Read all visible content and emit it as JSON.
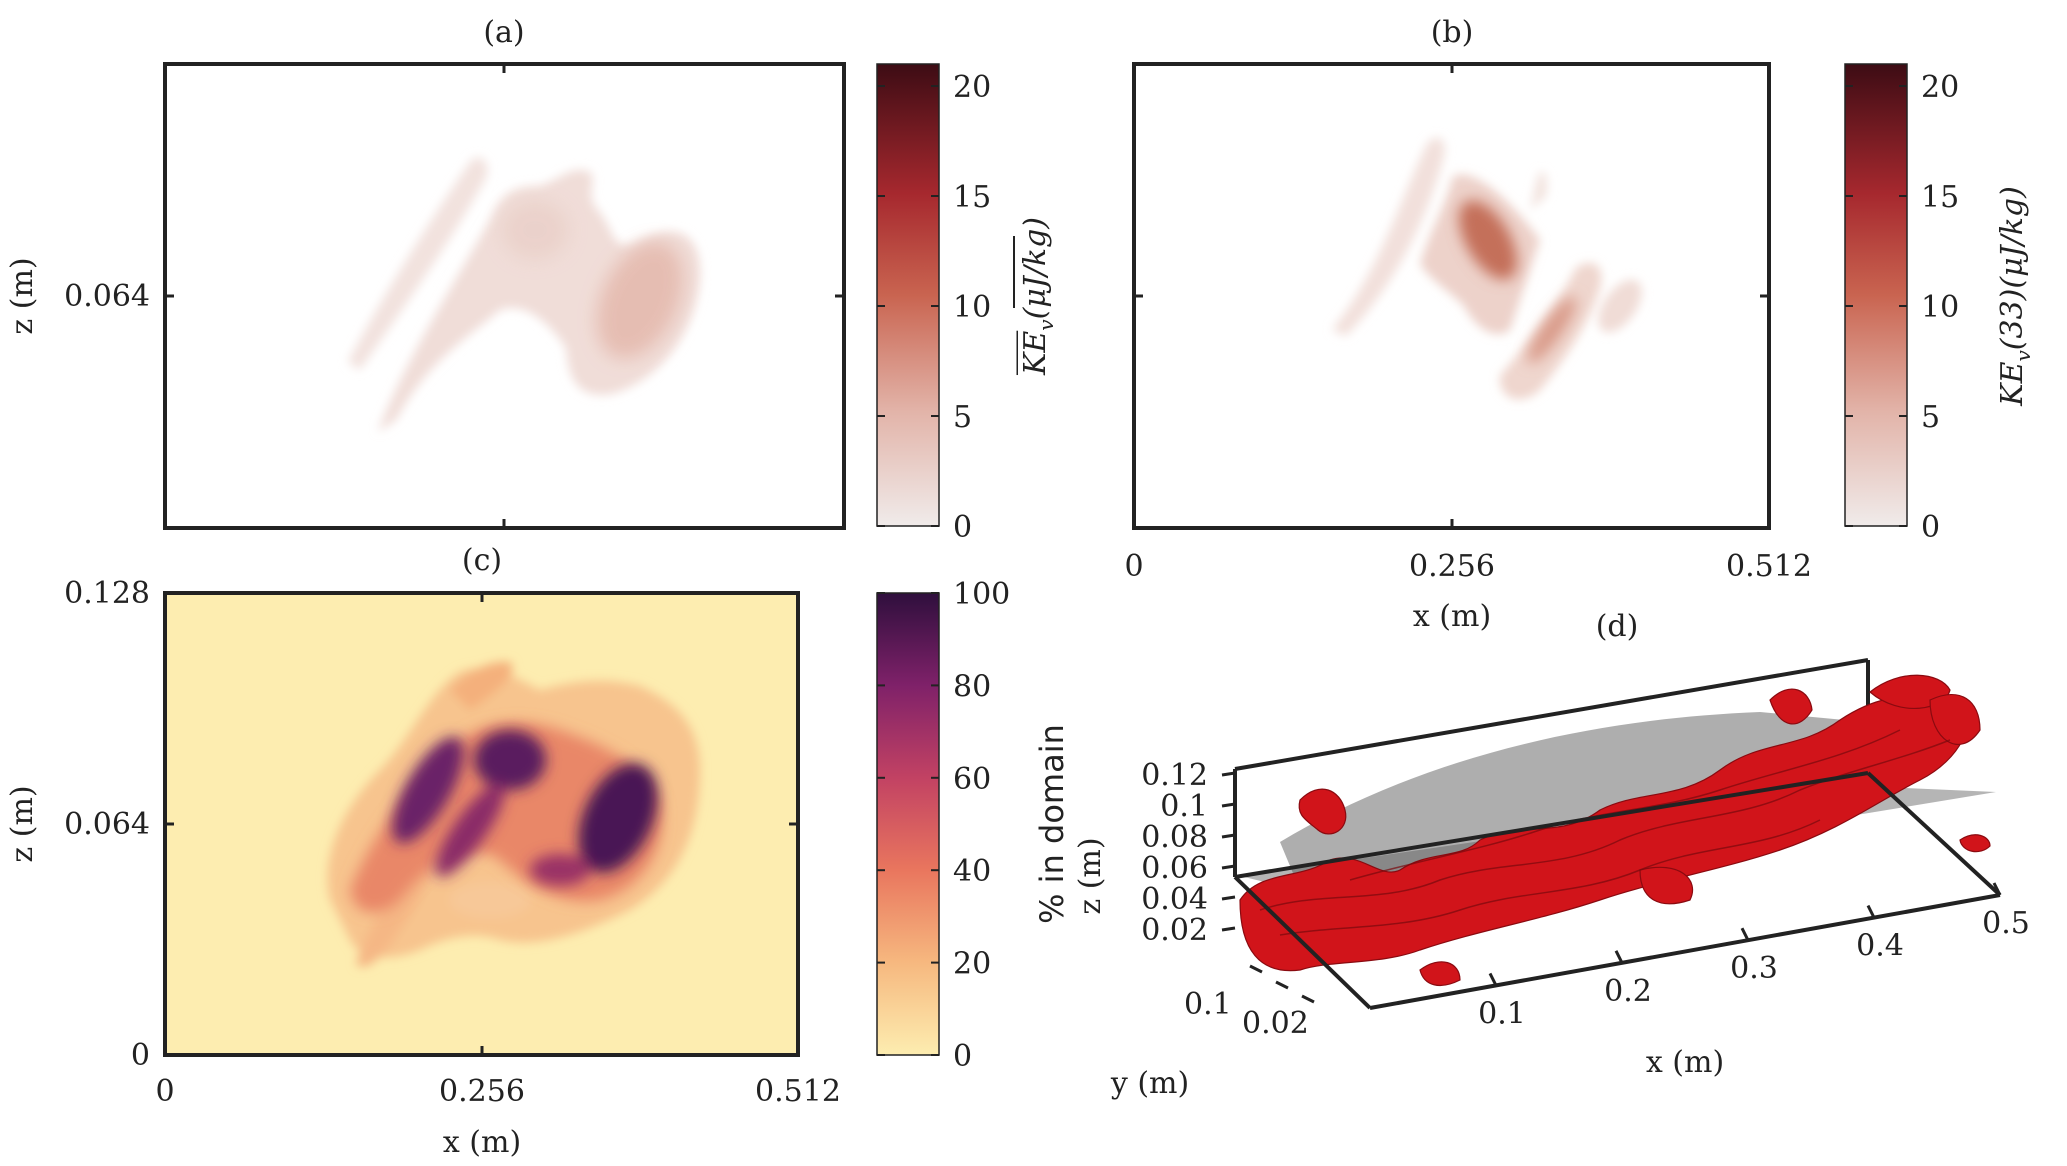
{
  "chart_data": [
    {
      "type": "heatmap",
      "panel": "(a)",
      "xlabel": "",
      "ylabel": "z (m)",
      "xlim": [
        0,
        0.512
      ],
      "ylim": [
        0,
        0.128
      ],
      "y_ticks": [
        "0.064"
      ],
      "colorbar": {
        "label_parts": [
          "KE",
          "v",
          "(μJ/kg)"
        ],
        "overline": true,
        "ticks": [
          "0",
          "5",
          "10",
          "15",
          "20"
        ],
        "range": [
          0,
          21
        ],
        "colormap": "amp"
      },
      "peak_value": 5
    },
    {
      "type": "heatmap",
      "panel": "(b)",
      "xlabel": "x (m)",
      "ylabel": "",
      "xlim": [
        0,
        0.512
      ],
      "ylim": [
        0,
        0.128
      ],
      "x_ticks": [
        "0",
        "0.256",
        "0.512"
      ],
      "colorbar": {
        "label_parts": [
          "KE",
          "v",
          "(33)(μJ/kg)"
        ],
        "overline": false,
        "ticks": [
          "0",
          "5",
          "10",
          "15",
          "20"
        ],
        "range": [
          0,
          21
        ],
        "colormap": "amp"
      },
      "peak_value": 9
    },
    {
      "type": "heatmap",
      "panel": "(c)",
      "xlabel": "x (m)",
      "ylabel": "z (m)",
      "xlim": [
        0,
        0.512
      ],
      "ylim": [
        0,
        0.128
      ],
      "x_ticks": [
        "0",
        "0.256",
        "0.512"
      ],
      "y_ticks": [
        "0",
        "0.064",
        "0.128"
      ],
      "colorbar": {
        "label": "% in domain",
        "ticks": [
          "0",
          "20",
          "40",
          "60",
          "80",
          "100"
        ],
        "range": [
          0,
          100
        ],
        "colormap": "matter"
      },
      "peak_value": 100
    },
    {
      "type": "isosurface-3d",
      "panel": "(d)",
      "xlabel": "x (m)",
      "ylabel": "y (m)",
      "zlabel": "z (m)",
      "x_ticks": [
        "0.1",
        "0.2",
        "0.3",
        "0.4",
        "0.5"
      ],
      "y_ticks": [
        "0.1",
        "0.02"
      ],
      "z_ticks": [
        "0.02",
        "0.04",
        "0.06",
        "0.08",
        "0.1",
        "0.12"
      ]
    }
  ],
  "colors": {
    "amp_low": "#f2ece9",
    "amp_high": "#3d0c14",
    "matter_low": "#fdedb0",
    "matter_high": "#2f0f3d",
    "isosurface": "#d1141a",
    "plane": "#6b6b6b",
    "axis": "#222222"
  }
}
